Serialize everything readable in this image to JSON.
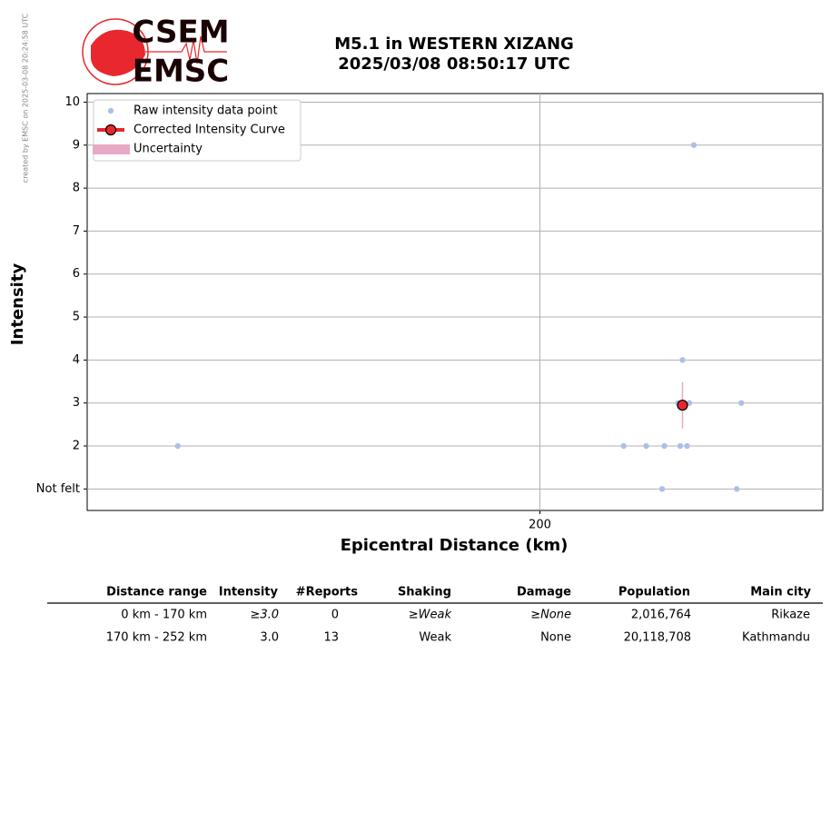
{
  "watermark": "created by EMSC on 2025-03-08 20:24:58 UTC",
  "logo": {
    "top": "CSEM",
    "bottom": "EMSC"
  },
  "chart_data": {
    "type": "scatter",
    "title": "M5.1 in WESTERN XIZANG",
    "subtitle": "2025/03/08 08:50:17 UTC",
    "x_label": "Epicentral Distance (km)",
    "y_label": "Intensity",
    "xlim": [
      0,
      325
    ],
    "ylim": [
      0.5,
      10.2
    ],
    "xticks": [
      200
    ],
    "yticks": [
      {
        "value": 1,
        "label": "Not felt"
      },
      2,
      3,
      4,
      5,
      6,
      7,
      8,
      9,
      10
    ],
    "grid": true,
    "legend": "upper left",
    "series": [
      {
        "name": "Raw intensity data point",
        "color": "#aebfe6",
        "x": [
          40,
          237,
          247,
          255,
          262,
          265,
          268,
          263,
          266,
          289,
          254,
          287,
          261
        ],
        "values": [
          2,
          2,
          2,
          2,
          2,
          2,
          9,
          4,
          3,
          3,
          1,
          1,
          3
        ]
      },
      {
        "name": "Corrected Intensity Curve",
        "color": "#e8282e",
        "x": [
          263
        ],
        "values": [
          2.95
        ],
        "errors": [
          0.54
        ],
        "error_name": "Uncertainty",
        "error_color": "#e8a9c6"
      }
    ]
  },
  "table": {
    "columns": [
      "Distance range",
      "Intensity",
      "#Reports",
      "Shaking",
      "Damage",
      "Population",
      "Main city"
    ],
    "rows": [
      [
        "0 km -  170 km",
        "≥3.0",
        "0",
        "≥Weak",
        "≥None",
        "2,016,764",
        "Rikaze"
      ],
      [
        "170 km -  252 km",
        "3.0",
        "13",
        "Weak",
        "None",
        "20,118,708",
        "Kathmandu"
      ]
    ]
  }
}
